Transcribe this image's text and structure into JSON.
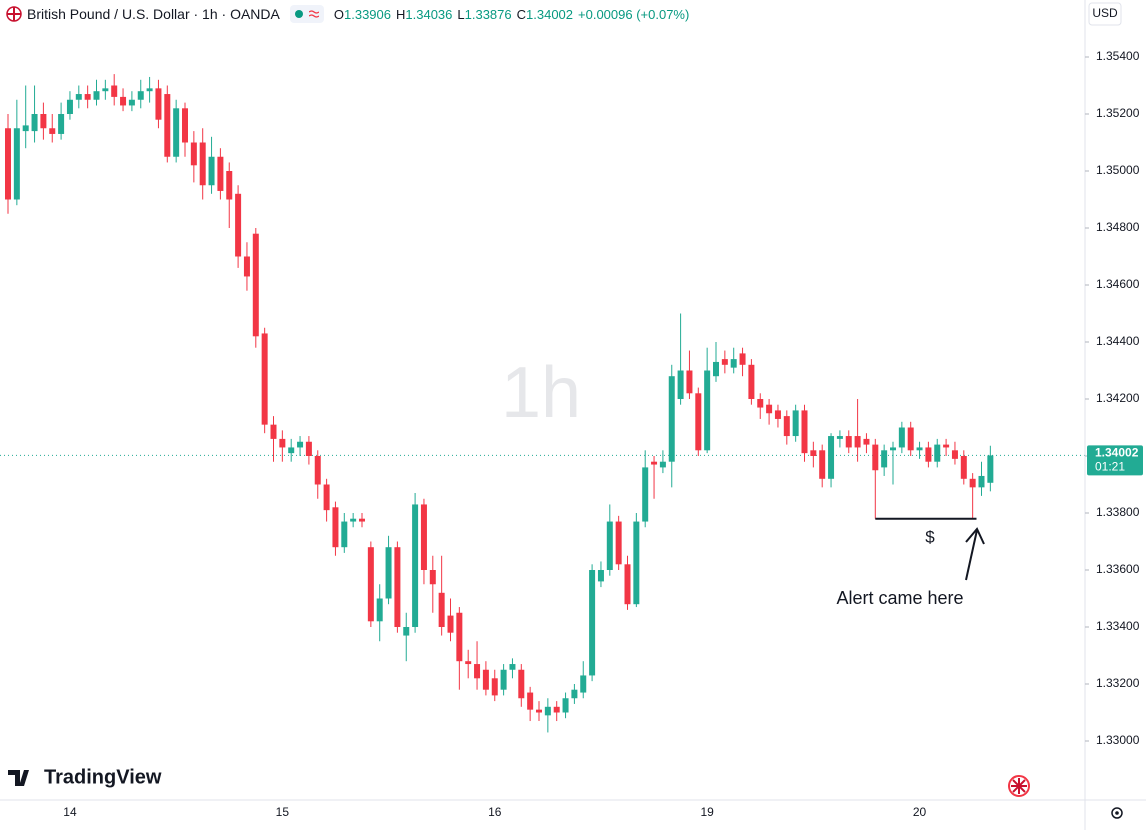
{
  "chart_data": {
    "type": "candlestick",
    "header": {
      "symbol": "British Pound / U.S. Dollar · 1h · OANDA",
      "ohlc": [
        {
          "key": "O",
          "value": "1.33906"
        },
        {
          "key": "H",
          "value": "1.34036"
        },
        {
          "key": "L",
          "value": "1.33876"
        },
        {
          "key": "C",
          "value": "1.34002"
        }
      ],
      "change": "+0.00096 (+0.07%)"
    },
    "currency": "USD",
    "watermark": "1h",
    "logo": "TradingView",
    "countdown": "01:21",
    "annotations": [
      {
        "text": "$"
      },
      {
        "text": "Alert came here"
      }
    ],
    "support_line": 1.3378,
    "up_color": "#22ab94",
    "down_color": "#f23645",
    "ylim": [
      1.328,
      1.356
    ],
    "yticks": [
      {
        "value": 1.33,
        "label": "1.33000"
      },
      {
        "value": 1.332,
        "label": "1.33200"
      },
      {
        "value": 1.334,
        "label": "1.33400"
      },
      {
        "value": 1.336,
        "label": "1.33600"
      },
      {
        "value": 1.338,
        "label": "1.33800"
      },
      {
        "value": 1.34,
        "label": "1.34000"
      },
      {
        "value": 1.342,
        "label": "1.34200"
      },
      {
        "value": 1.344,
        "label": "1.34400"
      },
      {
        "value": 1.346,
        "label": "1.34600"
      },
      {
        "value": 1.348,
        "label": "1.34800"
      },
      {
        "value": 1.35,
        "label": "1.35000"
      },
      {
        "value": 1.352,
        "label": "1.35200"
      },
      {
        "value": 1.354,
        "label": "1.35400"
      }
    ],
    "categories": [
      null,
      null,
      null,
      null,
      null,
      null,
      null,
      "14",
      null,
      null,
      null,
      null,
      null,
      null,
      null,
      null,
      null,
      null,
      null,
      null,
      null,
      null,
      null,
      null,
      null,
      null,
      null,
      null,
      null,
      null,
      null,
      "15",
      null,
      null,
      null,
      null,
      null,
      null,
      null,
      null,
      null,
      null,
      null,
      null,
      null,
      null,
      null,
      null,
      null,
      null,
      null,
      null,
      null,
      null,
      null,
      "16",
      null,
      null,
      null,
      null,
      null,
      null,
      null,
      null,
      null,
      null,
      null,
      null,
      null,
      null,
      null,
      null,
      null,
      null,
      null,
      null,
      null,
      null,
      null,
      "19",
      null,
      null,
      null,
      null,
      null,
      null,
      null,
      null,
      null,
      null,
      null,
      null,
      null,
      null,
      null,
      null,
      null,
      null,
      null,
      null,
      null,
      null,
      null,
      "20",
      null,
      null,
      null,
      null,
      null,
      null,
      null,
      null
    ],
    "open": [
      1.3515,
      1.349,
      1.3514,
      1.3514,
      1.352,
      1.3515,
      1.3513,
      1.352,
      1.3525,
      1.3527,
      1.3525,
      1.3528,
      1.353,
      1.3526,
      1.3523,
      1.3525,
      1.3528,
      1.3529,
      1.3527,
      1.3505,
      1.3522,
      1.351,
      1.351,
      1.3495,
      1.3505,
      1.35,
      1.3492,
      1.347,
      1.3478,
      1.3443,
      1.3411,
      1.3406,
      1.3401,
      1.3403,
      1.3405,
      1.34,
      1.339,
      1.3382,
      1.3368,
      1.3377,
      1.3378,
      1.3368,
      1.3342,
      1.335,
      1.3368,
      1.3337,
      1.334,
      1.3383,
      1.336,
      1.3352,
      1.3344,
      1.3345,
      1.3328,
      1.3327,
      1.3325,
      1.3322,
      1.3318,
      1.3325,
      1.3325,
      1.3317,
      1.3311,
      1.3309,
      1.3312,
      1.331,
      1.3315,
      1.3317,
      1.3323,
      1.3356,
      1.336,
      1.3377,
      1.3362,
      1.3348,
      1.3377,
      1.3398,
      1.3396,
      1.3398,
      1.342,
      1.343,
      1.3422,
      1.3402,
      1.3428,
      1.3434,
      1.3431,
      1.3436,
      1.3432,
      1.342,
      1.3418,
      1.3416,
      1.3414,
      1.3407,
      1.3416,
      1.3402,
      1.3402,
      1.3392,
      1.3406,
      1.3407,
      1.3407,
      1.3406,
      1.3404,
      1.3396,
      1.3402,
      1.3403,
      1.341,
      1.3402,
      1.3403,
      1.3398,
      1.3404,
      1.3402,
      1.34,
      1.3392,
      1.3389,
      1.33906
    ],
    "high": [
      1.352,
      1.3525,
      1.353,
      1.353,
      1.3524,
      1.352,
      1.3524,
      1.3528,
      1.353,
      1.353,
      1.3532,
      1.3532,
      1.3534,
      1.3529,
      1.3528,
      1.3532,
      1.3533,
      1.3532,
      1.353,
      1.3525,
      1.3524,
      1.3514,
      1.3515,
      1.3512,
      1.3508,
      1.3503,
      1.3495,
      1.3475,
      1.348,
      1.3445,
      1.3414,
      1.3409,
      1.3406,
      1.3407,
      1.3407,
      1.3402,
      1.3392,
      1.3384,
      1.338,
      1.338,
      1.338,
      1.337,
      1.3355,
      1.3372,
      1.337,
      1.3345,
      1.3387,
      1.3385,
      1.3365,
      1.3365,
      1.335,
      1.3347,
      1.3332,
      1.3335,
      1.3328,
      1.3325,
      1.3327,
      1.3329,
      1.3327,
      1.3319,
      1.3314,
      1.3315,
      1.3314,
      1.3317,
      1.332,
      1.3328,
      1.3362,
      1.3363,
      1.3383,
      1.3379,
      1.3365,
      1.338,
      1.3402,
      1.34,
      1.3402,
      1.3432,
      1.345,
      1.3437,
      1.3424,
      1.3438,
      1.344,
      1.3437,
      1.3438,
      1.3438,
      1.3434,
      1.3422,
      1.342,
      1.3418,
      1.3416,
      1.3418,
      1.3418,
      1.3405,
      1.3404,
      1.3408,
      1.3409,
      1.3409,
      1.342,
      1.3408,
      1.3406,
      1.3404,
      1.3405,
      1.3412,
      1.3412,
      1.3405,
      1.3405,
      1.3406,
      1.3406,
      1.3405,
      1.3402,
      1.3394,
      1.3398,
      1.34036
    ],
    "low": [
      1.3485,
      1.3488,
      1.3508,
      1.351,
      1.3511,
      1.351,
      1.3511,
      1.3518,
      1.3522,
      1.3522,
      1.3523,
      1.3525,
      1.3523,
      1.3521,
      1.3521,
      1.3522,
      1.3524,
      1.3515,
      1.3503,
      1.3503,
      1.3505,
      1.3496,
      1.349,
      1.3492,
      1.349,
      1.348,
      1.3466,
      1.3458,
      1.3438,
      1.3408,
      1.3398,
      1.3398,
      1.3398,
      1.34,
      1.3397,
      1.3385,
      1.3377,
      1.3365,
      1.3366,
      1.3375,
      1.3375,
      1.334,
      1.3335,
      1.3348,
      1.3338,
      1.3328,
      1.3338,
      1.3355,
      1.3345,
      1.3337,
      1.3335,
      1.3318,
      1.3322,
      1.3318,
      1.3316,
      1.3314,
      1.3316,
      1.3322,
      1.3312,
      1.3307,
      1.3307,
      1.3303,
      1.3307,
      1.3308,
      1.3313,
      1.3315,
      1.3321,
      1.3354,
      1.3358,
      1.336,
      1.3346,
      1.3347,
      1.3375,
      1.3385,
      1.3394,
      1.3389,
      1.3418,
      1.342,
      1.34,
      1.3401,
      1.3426,
      1.3429,
      1.3429,
      1.3428,
      1.3418,
      1.3413,
      1.3411,
      1.341,
      1.3404,
      1.3405,
      1.3398,
      1.3396,
      1.3389,
      1.3389,
      1.3403,
      1.3401,
      1.3398,
      1.3401,
      1.3378,
      1.3393,
      1.339,
      1.3401,
      1.34,
      1.3399,
      1.3396,
      1.3396,
      1.34,
      1.3397,
      1.339,
      1.3378,
      1.3386,
      1.33876
    ],
    "close": [
      1.349,
      1.3515,
      1.3516,
      1.352,
      1.3515,
      1.3513,
      1.352,
      1.3525,
      1.3527,
      1.3525,
      1.3528,
      1.3529,
      1.3526,
      1.3523,
      1.3525,
      1.3528,
      1.3529,
      1.3518,
      1.3505,
      1.3522,
      1.351,
      1.3502,
      1.3495,
      1.3505,
      1.3493,
      1.349,
      1.347,
      1.3463,
      1.3442,
      1.3411,
      1.3406,
      1.3403,
      1.3403,
      1.3405,
      1.34,
      1.339,
      1.3381,
      1.3368,
      1.3377,
      1.3378,
      1.3377,
      1.3342,
      1.335,
      1.3368,
      1.334,
      1.334,
      1.3383,
      1.336,
      1.3355,
      1.334,
      1.3338,
      1.3328,
      1.3327,
      1.3322,
      1.3318,
      1.3316,
      1.3325,
      1.3327,
      1.3315,
      1.3311,
      1.331,
      1.3312,
      1.331,
      1.3315,
      1.3318,
      1.3323,
      1.336,
      1.336,
      1.3377,
      1.3362,
      1.3348,
      1.3377,
      1.3396,
      1.3397,
      1.3398,
      1.3428,
      1.343,
      1.3422,
      1.3402,
      1.343,
      1.3433,
      1.3432,
      1.3434,
      1.3432,
      1.342,
      1.3417,
      1.3415,
      1.3413,
      1.3407,
      1.3416,
      1.3401,
      1.34,
      1.3392,
      1.3407,
      1.3407,
      1.3403,
      1.3403,
      1.3404,
      1.3395,
      1.3402,
      1.3403,
      1.341,
      1.3402,
      1.3403,
      1.3398,
      1.3404,
      1.3403,
      1.3399,
      1.3392,
      1.3389,
      1.3393,
      1.34002
    ]
  }
}
